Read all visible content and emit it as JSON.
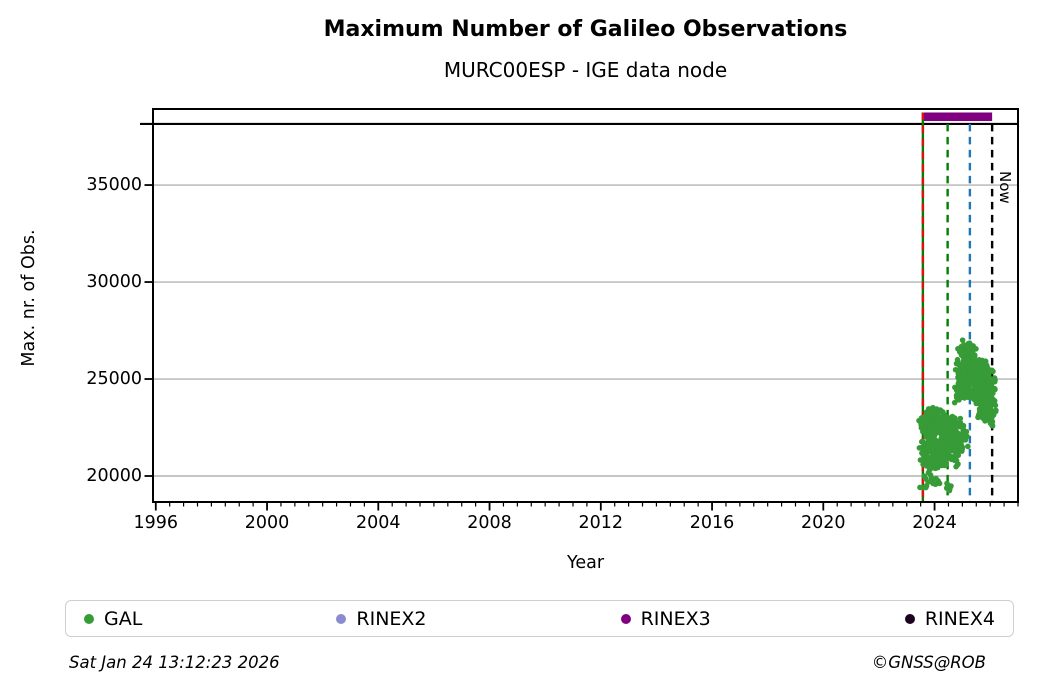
{
  "title": "Maximum Number of Galileo Observations",
  "subtitle": "MURC00ESP - IGE data node",
  "footer": {
    "timestamp": "Sat Jan 24 13:12:23 2026",
    "credit": "©GNSS@ROB"
  },
  "legend": [
    {
      "label": "GAL",
      "color": "#379b37"
    },
    {
      "label": "RINEX2",
      "color": "#8a8ccd"
    },
    {
      "label": "RINEX3",
      "color": "#800080"
    },
    {
      "label": "RINEX4",
      "color": "#1c021c"
    }
  ],
  "chart_data": {
    "type": "scatter",
    "title": "Maximum Number of Galileo Observations",
    "subtitle": "MURC00ESP - IGE data node",
    "xlabel": "Year",
    "ylabel": "Max. nr. of Obs.",
    "xlim": [
      1995.9,
      2027.0
    ],
    "ylim": [
      18660,
      38920
    ],
    "xticks_major": [
      1996,
      2000,
      2004,
      2008,
      2012,
      2016,
      2020,
      2024
    ],
    "xtick_minor_step": 0.5,
    "yticks": [
      20000,
      25000,
      30000,
      35000
    ],
    "grid": "horizontal",
    "grid_color": "#b4b4b4",
    "separator_line_y": 38150,
    "now_label": {
      "text": "Now",
      "x": 2026.07
    },
    "availability_bars": [
      {
        "name": "RINEX3",
        "color": "#800080",
        "start": 2023.58,
        "end": 2026.07,
        "y_low": 38300,
        "y_high": 38740
      }
    ],
    "vlines": [
      {
        "x": 2023.58,
        "color": "#008000",
        "style": "solid",
        "top": 38740,
        "name": "data-start-green-line"
      },
      {
        "x": 2023.58,
        "color": "#dd1111",
        "style": "dashed",
        "top": 38740,
        "name": "data-start-red-line"
      },
      {
        "x": 2024.47,
        "color": "#008000",
        "style": "dashed",
        "top": 38150,
        "name": "green-dashed-line"
      },
      {
        "x": 2025.27,
        "color": "#1f77b4",
        "style": "dashed",
        "top": 38150,
        "name": "blue-dashed-line"
      },
      {
        "x": 2026.07,
        "color": "#000000",
        "style": "dashed",
        "top": 38150,
        "name": "now-line"
      }
    ],
    "series": [
      {
        "name": "GAL",
        "color": "#379b37",
        "marker_radius": 2.8,
        "points": [
          [
            2023.6,
            21500
          ],
          [
            2023.6,
            22600
          ],
          [
            2023.62,
            21000
          ],
          [
            2023.63,
            22900
          ],
          [
            2023.63,
            19700
          ],
          [
            2023.65,
            21700
          ],
          [
            2023.66,
            22800
          ],
          [
            2023.68,
            20900
          ],
          [
            2023.69,
            22300
          ],
          [
            2023.71,
            21500
          ],
          [
            2023.72,
            23000
          ],
          [
            2023.74,
            20800
          ],
          [
            2023.75,
            22500
          ],
          [
            2023.77,
            21900
          ],
          [
            2023.78,
            23100
          ],
          [
            2023.8,
            21100
          ],
          [
            2023.81,
            22400
          ],
          [
            2023.83,
            20700
          ],
          [
            2023.84,
            22100
          ],
          [
            2023.86,
            23200
          ],
          [
            2023.87,
            21400
          ],
          [
            2023.89,
            22700
          ],
          [
            2023.9,
            20600
          ],
          [
            2023.9,
            19900
          ],
          [
            2023.92,
            22000
          ],
          [
            2023.93,
            23300
          ],
          [
            2023.95,
            21200
          ],
          [
            2023.96,
            22500
          ],
          [
            2023.98,
            20900
          ],
          [
            2023.99,
            21800
          ],
          [
            2024.01,
            23100
          ],
          [
            2024.02,
            21500
          ],
          [
            2024.04,
            22300
          ],
          [
            2024.05,
            19600
          ],
          [
            2024.05,
            20800
          ],
          [
            2024.07,
            22900
          ],
          [
            2024.08,
            21300
          ],
          [
            2024.1,
            22600
          ],
          [
            2024.11,
            21000
          ],
          [
            2024.13,
            23200
          ],
          [
            2024.14,
            21700
          ],
          [
            2024.16,
            22200
          ],
          [
            2024.17,
            20700
          ],
          [
            2024.19,
            22800
          ],
          [
            2024.2,
            21400
          ],
          [
            2024.22,
            23000
          ],
          [
            2024.23,
            21100
          ],
          [
            2024.25,
            22400
          ],
          [
            2024.26,
            20800
          ],
          [
            2024.28,
            21900
          ],
          [
            2024.29,
            23100
          ],
          [
            2024.31,
            21300
          ],
          [
            2024.32,
            22600
          ],
          [
            2024.34,
            20900
          ],
          [
            2024.35,
            22100
          ],
          [
            2024.37,
            21600
          ],
          [
            2024.38,
            23000
          ],
          [
            2024.4,
            21200
          ],
          [
            2024.41,
            22400
          ],
          [
            2024.43,
            20800
          ],
          [
            2024.44,
            21800
          ],
          [
            2024.46,
            22700
          ],
          [
            2024.47,
            21100
          ],
          [
            2024.49,
            22200
          ],
          [
            2024.5,
            19400
          ],
          [
            2024.52,
            21900
          ],
          [
            2024.54,
            22400
          ],
          [
            2024.56,
            21600
          ],
          [
            2024.58,
            22100
          ],
          [
            2024.6,
            22700
          ],
          [
            2024.62,
            21800
          ],
          [
            2024.64,
            22300
          ],
          [
            2024.66,
            21500
          ],
          [
            2024.68,
            22000
          ],
          [
            2024.7,
            22600
          ],
          [
            2024.72,
            21900
          ],
          [
            2024.74,
            22400
          ],
          [
            2024.76,
            22000
          ],
          [
            2024.78,
            22800
          ],
          [
            2024.8,
            22300
          ],
          [
            2024.82,
            21700
          ],
          [
            2024.84,
            22500
          ],
          [
            2024.86,
            23900
          ],
          [
            2024.86,
            21200
          ],
          [
            2024.88,
            24600
          ],
          [
            2024.88,
            20700
          ],
          [
            2024.9,
            25300
          ],
          [
            2024.9,
            22100
          ],
          [
            2024.92,
            24200
          ],
          [
            2024.92,
            21600
          ],
          [
            2024.94,
            25800
          ],
          [
            2024.96,
            24800
          ],
          [
            2024.96,
            22500
          ],
          [
            2024.98,
            26100
          ],
          [
            2024.98,
            21800
          ],
          [
            2025.0,
            25200
          ],
          [
            2025.0,
            26600
          ],
          [
            2025.02,
            24500
          ],
          [
            2025.02,
            22300
          ],
          [
            2025.04,
            25900
          ],
          [
            2025.06,
            26700
          ],
          [
            2025.06,
            24900
          ],
          [
            2025.08,
            25500
          ],
          [
            2025.08,
            21600
          ],
          [
            2025.1,
            26300
          ],
          [
            2025.1,
            24300
          ],
          [
            2025.12,
            25700
          ],
          [
            2025.14,
            26500
          ],
          [
            2025.14,
            24700
          ],
          [
            2025.16,
            25100
          ],
          [
            2025.18,
            26200
          ],
          [
            2025.2,
            24500
          ],
          [
            2025.2,
            25800
          ],
          [
            2025.22,
            26600
          ],
          [
            2025.24,
            25300
          ],
          [
            2025.26,
            24800
          ],
          [
            2025.26,
            26100
          ],
          [
            2025.28,
            25600
          ],
          [
            2025.3,
            26400
          ],
          [
            2025.3,
            24400
          ],
          [
            2025.32,
            25000
          ],
          [
            2025.34,
            26200
          ],
          [
            2025.34,
            24800
          ],
          [
            2025.36,
            25500
          ],
          [
            2025.38,
            26000
          ],
          [
            2025.38,
            24200
          ],
          [
            2025.4,
            25300
          ],
          [
            2025.42,
            26500
          ],
          [
            2025.42,
            24600
          ],
          [
            2025.44,
            25900
          ],
          [
            2025.46,
            24300
          ],
          [
            2025.46,
            25400
          ],
          [
            2025.48,
            24900
          ],
          [
            2025.5,
            25700
          ],
          [
            2025.5,
            24100
          ],
          [
            2025.52,
            25200
          ],
          [
            2025.54,
            24600
          ],
          [
            2025.54,
            25900
          ],
          [
            2025.56,
            24200
          ],
          [
            2025.58,
            25500
          ],
          [
            2025.58,
            23900
          ],
          [
            2025.6,
            24800
          ],
          [
            2025.62,
            25300
          ],
          [
            2025.62,
            24000
          ],
          [
            2025.64,
            24500
          ],
          [
            2025.66,
            25100
          ],
          [
            2025.66,
            23600
          ],
          [
            2025.68,
            24700
          ],
          [
            2025.7,
            25600
          ],
          [
            2025.7,
            23200
          ],
          [
            2025.72,
            24300
          ],
          [
            2025.74,
            25200
          ],
          [
            2025.74,
            23800
          ],
          [
            2025.76,
            24900
          ],
          [
            2025.78,
            25700
          ],
          [
            2025.78,
            23400
          ],
          [
            2025.8,
            24500
          ],
          [
            2025.82,
            25300
          ],
          [
            2025.82,
            23900
          ],
          [
            2025.84,
            24700
          ],
          [
            2025.86,
            25500
          ],
          [
            2025.86,
            23300
          ],
          [
            2025.88,
            24200
          ],
          [
            2025.9,
            25000
          ],
          [
            2025.9,
            23700
          ],
          [
            2025.92,
            24600
          ],
          [
            2025.94,
            25400
          ],
          [
            2025.94,
            23100
          ],
          [
            2025.96,
            24000
          ],
          [
            2025.98,
            24800
          ],
          [
            2025.98,
            23500
          ],
          [
            2026.0,
            24400
          ],
          [
            2026.02,
            25100
          ],
          [
            2026.02,
            23200
          ],
          [
            2026.04,
            23900
          ],
          [
            2026.05,
            24600
          ],
          [
            2026.06,
            23400
          ],
          [
            2026.06,
            22800
          ]
        ]
      }
    ]
  }
}
